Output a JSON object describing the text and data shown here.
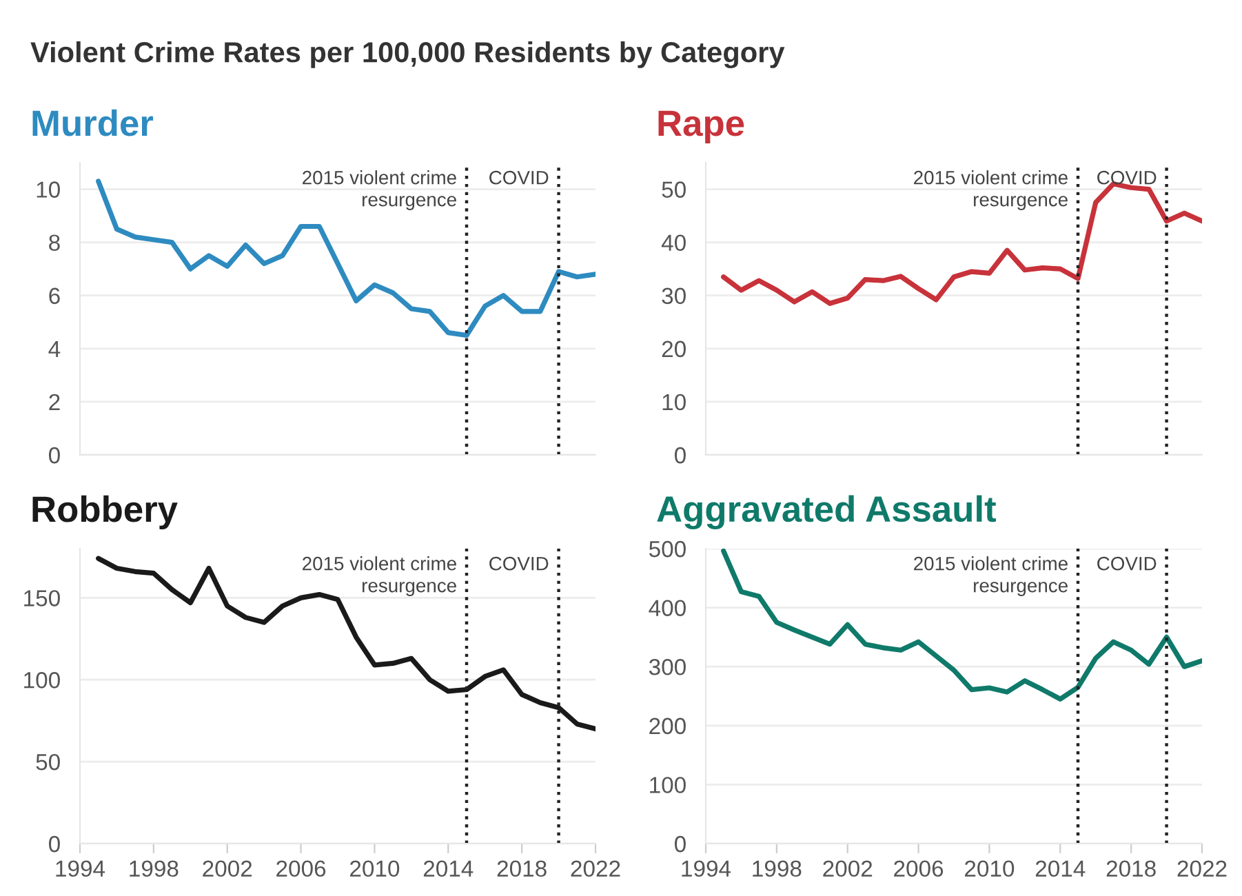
{
  "chart_data": [
    {
      "type": "line",
      "title": "Murder",
      "annotations": [
        "Violent Crime Rates per 100,000 Residents by Category"
      ],
      "x": [
        1995,
        1996,
        1997,
        1998,
        1999,
        2000,
        2001,
        2002,
        2003,
        2004,
        2005,
        2006,
        2007,
        2008,
        2009,
        2010,
        2011,
        2012,
        2013,
        2014,
        2015,
        2016,
        2017,
        2018,
        2019,
        2020,
        2021,
        2022
      ],
      "series": [
        {
          "color": "#2e8bc0",
          "values": [
            10.3,
            8.5,
            8.2,
            8.1,
            8.0,
            7.0,
            7.5,
            7.1,
            7.9,
            7.2,
            7.5,
            8.6,
            8.6,
            7.2,
            5.8,
            6.4,
            6.1,
            5.5,
            5.4,
            4.6,
            4.5,
            5.6,
            6.0,
            5.4,
            5.4,
            6.9,
            6.7,
            6.8
          ]
        }
      ],
      "xlim": [
        1994,
        2022
      ],
      "xticks": [
        1994,
        1998,
        2002,
        2006,
        2010,
        2014,
        2018,
        2022
      ],
      "ylim": [
        0,
        11
      ],
      "yticks": [
        0,
        2,
        4,
        6,
        8,
        10
      ],
      "tick_labels": "y",
      "grid": "y",
      "line_style": "solid",
      "ref_lines": [
        {
          "axis": "x",
          "value": 2015,
          "label": "2015 violent crime\nresurgence",
          "color": "#222222",
          "line_style": "dotted"
        },
        {
          "axis": "x",
          "value": 2020,
          "label": "COVID",
          "color": "#222222",
          "line_style": "dotted"
        }
      ]
    },
    {
      "type": "line",
      "title": "Rape",
      "x": [
        1995,
        1996,
        1997,
        1998,
        1999,
        2000,
        2001,
        2002,
        2003,
        2004,
        2005,
        2006,
        2007,
        2008,
        2009,
        2010,
        2011,
        2012,
        2013,
        2014,
        2015,
        2016,
        2017,
        2018,
        2019,
        2020,
        2021,
        2022
      ],
      "series": [
        {
          "color": "#c8323a",
          "values": [
            33.5,
            31.0,
            32.8,
            31.0,
            28.8,
            30.7,
            28.5,
            29.5,
            33.0,
            32.8,
            33.6,
            31.3,
            29.2,
            33.5,
            34.5,
            34.2,
            38.5,
            34.8,
            35.2,
            35.0,
            33.2,
            47.5,
            51.0,
            50.3,
            50.0,
            44.0,
            45.5,
            44.0
          ]
        }
      ],
      "xlim": [
        1994,
        2022
      ],
      "xticks": [
        1994,
        1998,
        2002,
        2006,
        2010,
        2014,
        2018,
        2022
      ],
      "ylim": [
        0,
        55
      ],
      "yticks": [
        0,
        10,
        20,
        30,
        40,
        50
      ],
      "tick_labels": "y",
      "grid": "y",
      "line_style": "solid",
      "ref_lines": [
        {
          "axis": "x",
          "value": 2015,
          "label": "2015 violent crime\nresurgence",
          "color": "#222222",
          "line_style": "dotted"
        },
        {
          "axis": "x",
          "value": 2020,
          "label": "COVID",
          "color": "#222222",
          "line_style": "dotted"
        }
      ]
    },
    {
      "type": "line",
      "title": "Robbery",
      "x": [
        1995,
        1996,
        1997,
        1998,
        1999,
        2000,
        2001,
        2002,
        2003,
        2004,
        2005,
        2006,
        2007,
        2008,
        2009,
        2010,
        2011,
        2012,
        2013,
        2014,
        2015,
        2016,
        2017,
        2018,
        2019,
        2020,
        2021,
        2022
      ],
      "series": [
        {
          "color": "#1a1a1a",
          "values": [
            174,
            168,
            166,
            165,
            155,
            147,
            168,
            145,
            138,
            135,
            145,
            150,
            152,
            149,
            126,
            109,
            110,
            113,
            100,
            93,
            94,
            102,
            106,
            91,
            86,
            83,
            73,
            70
          ]
        }
      ],
      "xlim": [
        1994,
        2022
      ],
      "xticks": [
        1994,
        1998,
        2002,
        2006,
        2010,
        2014,
        2018,
        2022
      ],
      "ylim": [
        0,
        180
      ],
      "yticks": [
        0,
        50,
        100,
        150
      ],
      "grid": "y",
      "line_style": "solid",
      "ref_lines": [
        {
          "axis": "x",
          "value": 2015,
          "label": "2015 violent crime\nresurgence",
          "color": "#222222",
          "line_style": "dotted"
        },
        {
          "axis": "x",
          "value": 2020,
          "label": "COVID",
          "color": "#222222",
          "line_style": "dotted"
        }
      ]
    },
    {
      "type": "line",
      "title": "Aggravated Assault",
      "x": [
        1995,
        1996,
        1997,
        1998,
        1999,
        2000,
        2001,
        2002,
        2003,
        2004,
        2005,
        2006,
        2007,
        2008,
        2009,
        2010,
        2011,
        2012,
        2013,
        2014,
        2015,
        2016,
        2017,
        2018,
        2019,
        2020,
        2021,
        2022
      ],
      "series": [
        {
          "color": "#0f7a6a",
          "values": [
            496,
            427,
            419,
            375,
            362,
            350,
            338,
            371,
            338,
            332,
            328,
            342,
            318,
            294,
            261,
            264,
            257,
            276,
            261,
            245,
            265,
            314,
            342,
            328,
            304,
            350,
            300,
            310
          ]
        }
      ],
      "xlim": [
        1994,
        2022
      ],
      "xticks": [
        1994,
        1998,
        2002,
        2006,
        2010,
        2014,
        2018,
        2022
      ],
      "ylim": [
        0,
        500
      ],
      "yticks": [
        0,
        100,
        200,
        300,
        400,
        500
      ],
      "grid": "y",
      "line_style": "solid",
      "ref_lines": [
        {
          "axis": "x",
          "value": 2015,
          "label": "2015 violent crime\nresurgence",
          "color": "#222222",
          "line_style": "dotted"
        },
        {
          "axis": "x",
          "value": 2020,
          "label": "COVID",
          "color": "#222222",
          "line_style": "dotted"
        }
      ]
    }
  ]
}
